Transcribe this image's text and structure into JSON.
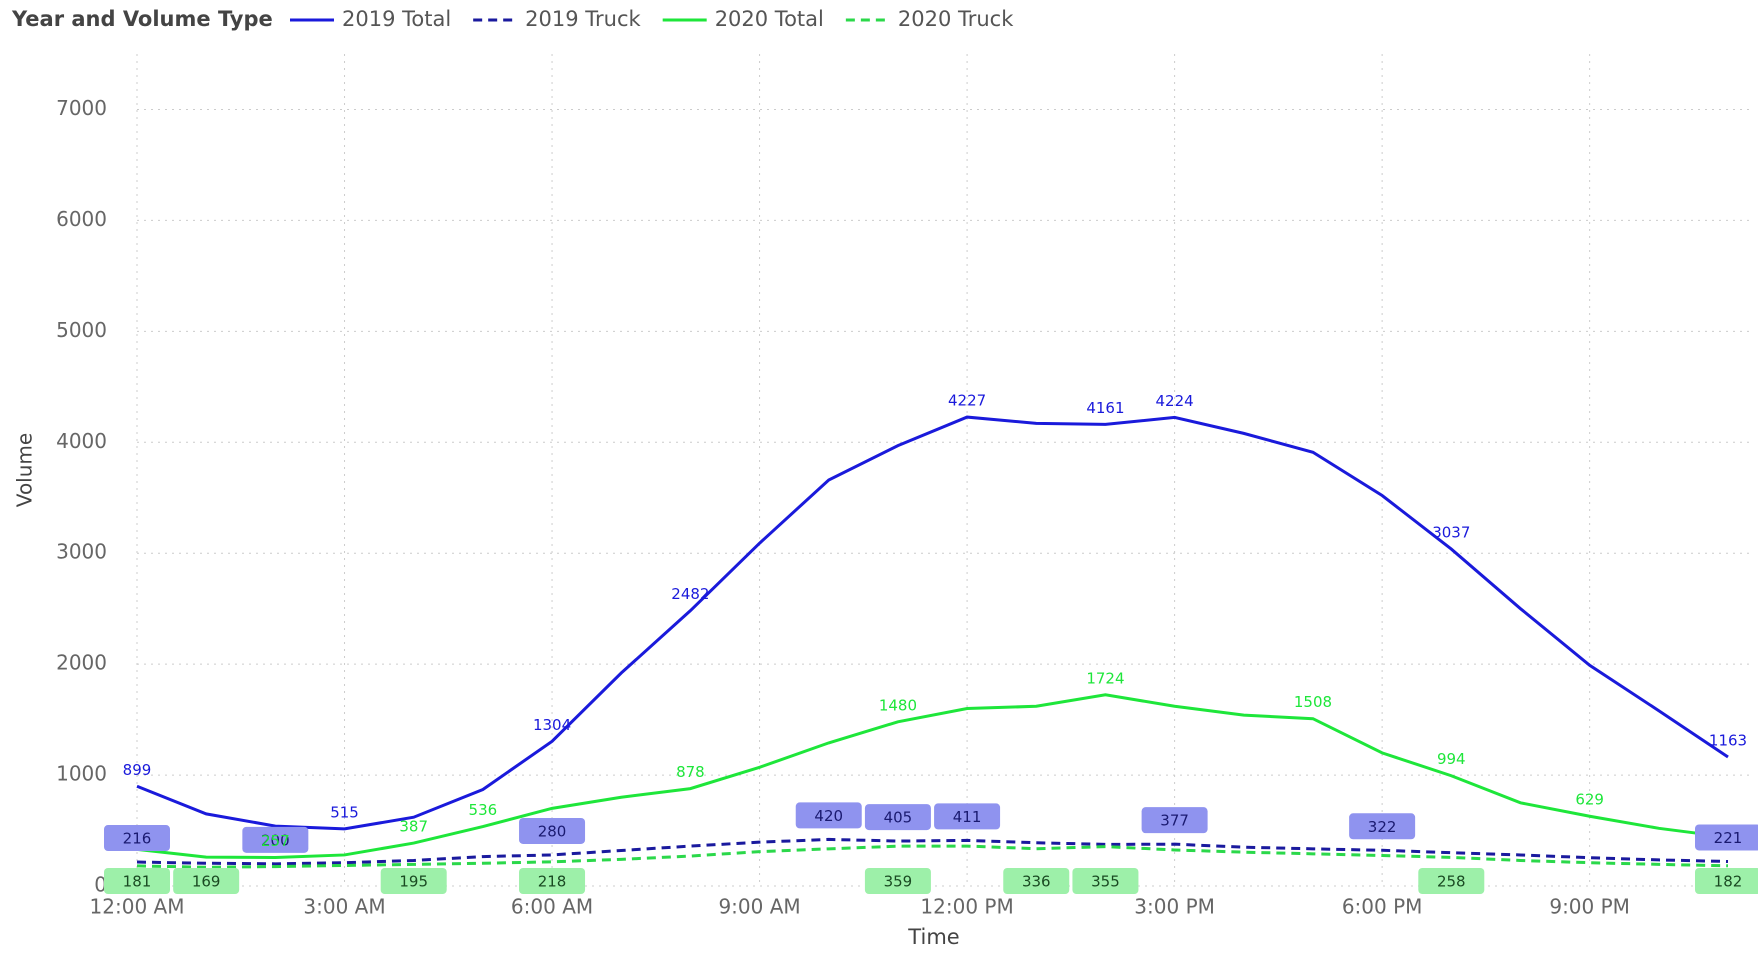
{
  "chart_data": {
    "type": "line",
    "legend_title": "Year and Volume Type",
    "xlabel": "Time",
    "ylabel": "Volume",
    "categories": [
      "12:00 AM",
      null,
      null,
      "3:00 AM",
      null,
      null,
      "6:00 AM",
      null,
      null,
      "9:00 AM",
      null,
      null,
      "12:00 PM",
      null,
      null,
      "3:00 PM",
      null,
      null,
      "6:00 PM",
      null,
      null,
      "9:00 PM",
      null,
      null
    ],
    "ylim": [
      0,
      7500
    ],
    "yticks": [
      0,
      1000,
      2000,
      3000,
      4000,
      5000,
      6000,
      7000
    ],
    "grid": true,
    "legend": "top-left",
    "series": [
      {
        "name": "2019 Total",
        "color": "#1a1adb",
        "dashed": false,
        "values": [
          899,
          650,
          540,
          515,
          620,
          870,
          1304,
          1920,
          2482,
          3090,
          3660,
          3970,
          4227,
          4170,
          4161,
          4224,
          4080,
          3910,
          3520,
          3037,
          2500,
          1990,
          1580,
          1163
        ],
        "value_labels": [
          "899",
          null,
          null,
          "515",
          null,
          null,
          "1304",
          null,
          "2482",
          null,
          null,
          null,
          "4227",
          null,
          "4161",
          "4224",
          null,
          null,
          null,
          "3037",
          null,
          null,
          null,
          "1163"
        ]
      },
      {
        "name": "2019 Truck",
        "color": "#1a1a9e",
        "dashed": true,
        "values": [
          216,
          205,
          200,
          210,
          230,
          265,
          280,
          320,
          360,
          395,
          420,
          405,
          411,
          390,
          375,
          377,
          350,
          335,
          322,
          300,
          280,
          255,
          235,
          221
        ],
        "value_labels": [
          "216",
          null,
          "200",
          null,
          null,
          null,
          "280",
          null,
          null,
          null,
          "420",
          "405",
          "411",
          null,
          null,
          "377",
          null,
          null,
          "322",
          null,
          null,
          null,
          null,
          "221"
        ]
      },
      {
        "name": "2020 Total",
        "color": "#1ee63a",
        "dashed": false,
        "values": [
          330,
          260,
          257,
          280,
          387,
          536,
          700,
          800,
          878,
          1070,
          1290,
          1480,
          1600,
          1620,
          1724,
          1620,
          1540,
          1508,
          1200,
          994,
          750,
          629,
          520,
          440
        ],
        "value_labels": [
          null,
          null,
          "257",
          null,
          "387",
          "536",
          null,
          null,
          "878",
          null,
          null,
          "1480",
          null,
          null,
          "1724",
          null,
          null,
          "1508",
          null,
          "994",
          null,
          "629",
          null,
          null
        ]
      },
      {
        "name": "2020 Truck",
        "color": "#2bd84a",
        "dashed": true,
        "values": [
          181,
          169,
          175,
          185,
          195,
          205,
          218,
          240,
          270,
          310,
          335,
          359,
          360,
          336,
          355,
          325,
          305,
          290,
          275,
          258,
          230,
          210,
          195,
          182
        ],
        "value_labels": [
          "181",
          "169",
          null,
          null,
          "195",
          null,
          "218",
          null,
          null,
          null,
          null,
          "359",
          null,
          "336",
          "355",
          null,
          null,
          null,
          null,
          "258",
          null,
          null,
          null,
          "182"
        ]
      }
    ]
  }
}
